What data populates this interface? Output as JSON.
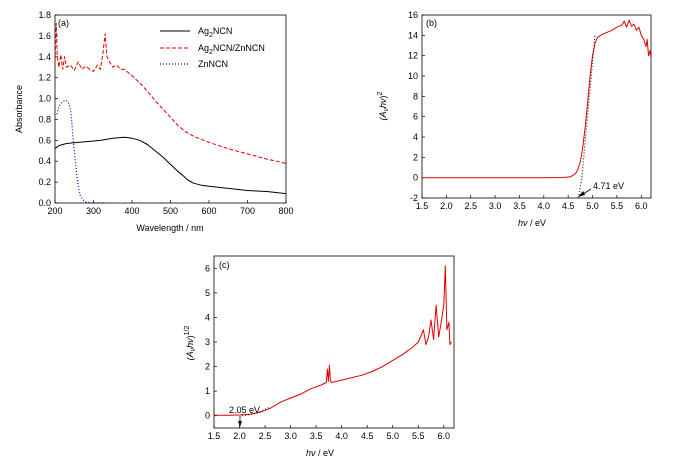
{
  "panels": [
    {
      "id": "a",
      "panel_label": "(a)",
      "annotation": "",
      "chart_data": {
        "type": "line",
        "xlabel": "Wavelength / nm",
        "ylabel": "Absorbance",
        "xlim": [
          200,
          800
        ],
        "ylim": [
          0.0,
          1.8
        ],
        "x_ticks": [
          200,
          300,
          400,
          500,
          600,
          700,
          800
        ],
        "x_tick_labels": [
          "200",
          "300",
          "400",
          "500",
          "600",
          "700",
          "800"
        ],
        "y_ticks": [
          0.0,
          0.2,
          0.4,
          0.6,
          0.8,
          1.0,
          1.2,
          1.4,
          1.6,
          1.8
        ],
        "y_tick_labels": [
          "0.0",
          "0.2",
          "0.4",
          "0.6",
          "0.8",
          "1.0",
          "1.2",
          "1.4",
          "1.6",
          "1.8"
        ],
        "legend_position": "top-right",
        "series": [
          {
            "name": "Ag2NCN",
            "name_main": "Ag",
            "name_sub": "2",
            "name_rest": "NCN",
            "color": "#000000",
            "dash": "solid",
            "points": [
              [
                200,
                0.52
              ],
              [
                210,
                0.55
              ],
              [
                230,
                0.57
              ],
              [
                260,
                0.58
              ],
              [
                290,
                0.59
              ],
              [
                320,
                0.6
              ],
              [
                350,
                0.62
              ],
              [
                380,
                0.63
              ],
              [
                400,
                0.62
              ],
              [
                420,
                0.6
              ],
              [
                440,
                0.56
              ],
              [
                460,
                0.5
              ],
              [
                480,
                0.44
              ],
              [
                500,
                0.37
              ],
              [
                520,
                0.3
              ],
              [
                530,
                0.27
              ],
              [
                545,
                0.22
              ],
              [
                560,
                0.19
              ],
              [
                580,
                0.17
              ],
              [
                600,
                0.16
              ],
              [
                650,
                0.14
              ],
              [
                700,
                0.12
              ],
              [
                750,
                0.11
              ],
              [
                800,
                0.09
              ]
            ]
          },
          {
            "name": "Ag2NCN/ZnNCN",
            "name_main": "Ag",
            "name_sub": "2",
            "name_rest": "NCN/ZnNCN",
            "color": "#e00000",
            "dash": "dashed",
            "points": [
              [
                200,
                1.35
              ],
              [
                203,
                1.72
              ],
              [
                206,
                1.4
              ],
              [
                210,
                1.3
              ],
              [
                215,
                1.42
              ],
              [
                220,
                1.28
              ],
              [
                225,
                1.4
              ],
              [
                230,
                1.3
              ],
              [
                240,
                1.32
              ],
              [
                250,
                1.27
              ],
              [
                260,
                1.35
              ],
              [
                270,
                1.28
              ],
              [
                280,
                1.31
              ],
              [
                290,
                1.28
              ],
              [
                300,
                1.26
              ],
              [
                310,
                1.32
              ],
              [
                318,
                1.28
              ],
              [
                325,
                1.45
              ],
              [
                330,
                1.62
              ],
              [
                335,
                1.4
              ],
              [
                340,
                1.36
              ],
              [
                350,
                1.3
              ],
              [
                360,
                1.32
              ],
              [
                370,
                1.28
              ],
              [
                380,
                1.28
              ],
              [
                400,
                1.22
              ],
              [
                420,
                1.15
              ],
              [
                440,
                1.07
              ],
              [
                460,
                0.98
              ],
              [
                480,
                0.9
              ],
              [
                500,
                0.82
              ],
              [
                520,
                0.74
              ],
              [
                540,
                0.68
              ],
              [
                560,
                0.64
              ],
              [
                580,
                0.61
              ],
              [
                600,
                0.58
              ],
              [
                650,
                0.52
              ],
              [
                700,
                0.47
              ],
              [
                750,
                0.42
              ],
              [
                800,
                0.38
              ]
            ]
          },
          {
            "name": "ZnNCN",
            "name_main": "ZnNCN",
            "name_sub": "",
            "name_rest": "",
            "color": "#0000c0",
            "dash": "dotted",
            "points": [
              [
                205,
                0.85
              ],
              [
                210,
                0.92
              ],
              [
                215,
                0.95
              ],
              [
                220,
                0.97
              ],
              [
                225,
                0.98
              ],
              [
                230,
                0.98
              ],
              [
                235,
                0.96
              ],
              [
                240,
                0.9
              ],
              [
                243,
                0.8
              ],
              [
                246,
                0.65
              ],
              [
                250,
                0.5
              ],
              [
                254,
                0.35
              ],
              [
                258,
                0.22
              ],
              [
                262,
                0.13
              ],
              [
                266,
                0.07
              ],
              [
                272,
                0.03
              ],
              [
                280,
                0.01
              ],
              [
                300,
                0.0
              ],
              [
                330,
                0.0
              ]
            ]
          }
        ]
      }
    },
    {
      "id": "b",
      "panel_label": "(b)",
      "annotation": "4.71 eV",
      "chart_data": {
        "type": "line",
        "xlabel_main": "hν",
        "xlabel_rest": " / eV",
        "ylabel": "(Aνhν)2",
        "ylabel_main": "(A",
        "ylabel_nu": "ν",
        "ylabel_hv": "hν",
        "ylabel_close": ")",
        "ylabel_sup": "2",
        "xlim": [
          1.5,
          6.2
        ],
        "ylim": [
          -2,
          16
        ],
        "x_ticks": [
          1.5,
          2.0,
          2.5,
          3.0,
          3.5,
          4.0,
          4.5,
          5.0,
          5.5,
          6.0
        ],
        "x_tick_labels": [
          "1.5",
          "2.0",
          "2.5",
          "3.0",
          "3.5",
          "4.0",
          "4.5",
          "5.0",
          "5.5",
          "6.0"
        ],
        "y_ticks": [
          -2,
          0,
          2,
          4,
          6,
          8,
          10,
          12,
          14,
          16
        ],
        "y_tick_labels": [
          "-2",
          "0",
          "2",
          "4",
          "6",
          "8",
          "10",
          "12",
          "14",
          "16"
        ],
        "series": [
          {
            "name": "",
            "color": "#e00000",
            "dash": "solid",
            "points": [
              [
                1.5,
                0.0
              ],
              [
                3.0,
                0.0
              ],
              [
                4.0,
                0.0
              ],
              [
                4.4,
                0.02
              ],
              [
                4.55,
                0.1
              ],
              [
                4.65,
                0.4
              ],
              [
                4.7,
                0.8
              ],
              [
                4.75,
                1.6
              ],
              [
                4.8,
                3.0
              ],
              [
                4.85,
                5.0
              ],
              [
                4.9,
                7.5
              ],
              [
                4.95,
                10.0
              ],
              [
                5.0,
                12.0
              ],
              [
                5.05,
                13.2
              ],
              [
                5.1,
                13.8
              ],
              [
                5.2,
                14.1
              ],
              [
                5.3,
                14.3
              ],
              [
                5.4,
                14.5
              ],
              [
                5.5,
                14.8
              ],
              [
                5.6,
                15.0
              ],
              [
                5.65,
                15.4
              ],
              [
                5.7,
                14.8
              ],
              [
                5.75,
                15.5
              ],
              [
                5.8,
                14.9
              ],
              [
                5.85,
                15.1
              ],
              [
                5.9,
                14.5
              ],
              [
                5.95,
                14.8
              ],
              [
                6.0,
                14.0
              ],
              [
                6.05,
                13.6
              ],
              [
                6.1,
                12.9
              ],
              [
                6.12,
                13.6
              ],
              [
                6.15,
                12.0
              ],
              [
                6.18,
                12.5
              ],
              [
                6.2,
                11.8
              ]
            ]
          },
          {
            "name": "",
            "color": "#222222",
            "dash": "dotted",
            "points": [
              [
                4.71,
                -2.0
              ],
              [
                4.78,
                0.0
              ],
              [
                5.05,
                14.0
              ]
            ]
          }
        ]
      }
    },
    {
      "id": "c",
      "panel_label": "(c)",
      "annotation": "2.05 eV",
      "chart_data": {
        "type": "line",
        "xlabel_main": "hν",
        "xlabel_rest": " / eV",
        "ylabel": "(Aνhν)1/2",
        "ylabel_main": "(A",
        "ylabel_nu": "ν",
        "ylabel_hv": "hν",
        "ylabel_close": ")",
        "ylabel_sup": "1/2",
        "xlim": [
          1.5,
          6.2
        ],
        "ylim": [
          -0.5,
          6.5
        ],
        "x_ticks": [
          1.5,
          2.0,
          2.5,
          3.0,
          3.5,
          4.0,
          4.5,
          5.0,
          5.5,
          6.0
        ],
        "x_tick_labels": [
          "1.5",
          "2.0",
          "2.5",
          "3.0",
          "3.5",
          "4.0",
          "4.5",
          "5.0",
          "5.5",
          "6.0"
        ],
        "y_ticks": [
          0,
          1,
          2,
          3,
          4,
          5,
          6
        ],
        "y_tick_labels": [
          "0",
          "1",
          "2",
          "3",
          "4",
          "5",
          "6"
        ],
        "series": [
          {
            "name": "",
            "color": "#e00000",
            "dash": "solid",
            "points": [
              [
                1.5,
                0.02
              ],
              [
                1.8,
                0.02
              ],
              [
                2.0,
                0.03
              ],
              [
                2.2,
                0.06
              ],
              [
                2.4,
                0.14
              ],
              [
                2.6,
                0.3
              ],
              [
                2.8,
                0.55
              ],
              [
                3.0,
                0.72
              ],
              [
                3.2,
                0.88
              ],
              [
                3.4,
                1.1
              ],
              [
                3.6,
                1.25
              ],
              [
                3.7,
                1.35
              ],
              [
                3.72,
                1.9
              ],
              [
                3.74,
                1.4
              ],
              [
                3.76,
                2.05
              ],
              [
                3.78,
                1.45
              ],
              [
                3.8,
                1.35
              ],
              [
                4.0,
                1.45
              ],
              [
                4.2,
                1.55
              ],
              [
                4.4,
                1.65
              ],
              [
                4.6,
                1.8
              ],
              [
                4.8,
                2.0
              ],
              [
                5.0,
                2.25
              ],
              [
                5.2,
                2.5
              ],
              [
                5.4,
                2.8
              ],
              [
                5.5,
                3.0
              ],
              [
                5.6,
                3.5
              ],
              [
                5.65,
                2.9
              ],
              [
                5.7,
                3.2
              ],
              [
                5.75,
                3.9
              ],
              [
                5.8,
                3.1
              ],
              [
                5.85,
                4.5
              ],
              [
                5.9,
                3.2
              ],
              [
                5.95,
                3.8
              ],
              [
                6.0,
                4.5
              ],
              [
                6.03,
                6.1
              ],
              [
                6.06,
                3.5
              ],
              [
                6.1,
                3.8
              ],
              [
                6.12,
                2.9
              ],
              [
                6.15,
                3.0
              ]
            ]
          },
          {
            "name": "",
            "color": "#222222",
            "dash": "dotted",
            "points": [
              [
                2.05,
                0.0
              ],
              [
                2.3,
                0.08
              ],
              [
                2.6,
                0.35
              ]
            ]
          }
        ]
      }
    }
  ]
}
